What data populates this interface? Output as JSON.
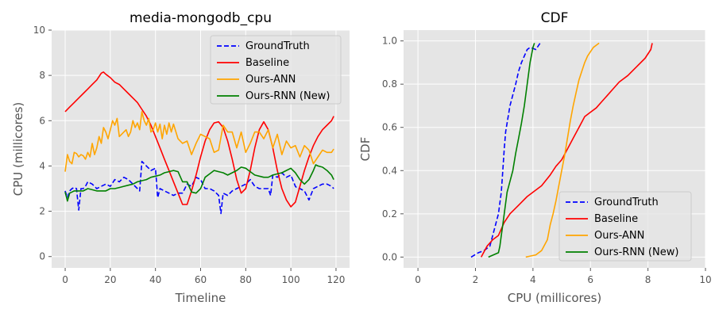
{
  "chart_data": [
    {
      "type": "line",
      "title": "media-mongodb_cpu",
      "xlabel": "Timeline",
      "ylabel": "CPU (millicores)",
      "xlim": [
        -6,
        126
      ],
      "ylim": [
        -0.5,
        10
      ],
      "xticks": [
        0,
        20,
        40,
        60,
        80,
        100,
        120
      ],
      "yticks": [
        0,
        2,
        4,
        6,
        8,
        10
      ],
      "grid": true,
      "legend_position": "top-right",
      "series": [
        {
          "name": "GroundTruth",
          "color": "#0000ff",
          "style": "dashed",
          "x": [
            0,
            1,
            2,
            3,
            4,
            5,
            6,
            7,
            8,
            9,
            10,
            12,
            14,
            16,
            18,
            20,
            22,
            24,
            26,
            28,
            30,
            32,
            33,
            34,
            36,
            38,
            40,
            41,
            42,
            44,
            46,
            48,
            50,
            52,
            54,
            56,
            58,
            60,
            62,
            64,
            66,
            68,
            69,
            70,
            72,
            74,
            76,
            78,
            80,
            82,
            84,
            86,
            88,
            90,
            91,
            92,
            94,
            96,
            98,
            100,
            102,
            103,
            104,
            106,
            108,
            110,
            112,
            114,
            116,
            118,
            119
          ],
          "y": [
            2.9,
            2.6,
            2.9,
            3.0,
            3.05,
            3.0,
            2.05,
            3.0,
            3.0,
            3.1,
            3.3,
            3.2,
            3.0,
            3.1,
            3.2,
            3.1,
            3.4,
            3.3,
            3.5,
            3.4,
            3.2,
            3.0,
            2.9,
            4.2,
            4.0,
            3.8,
            3.9,
            2.6,
            3.0,
            2.9,
            2.8,
            2.7,
            2.8,
            2.8,
            3.2,
            3.1,
            3.5,
            3.4,
            3.0,
            3.0,
            2.9,
            2.7,
            1.9,
            2.8,
            2.7,
            2.9,
            3.0,
            3.1,
            3.2,
            3.4,
            3.1,
            3.0,
            3.0,
            3.0,
            2.7,
            3.6,
            3.5,
            3.7,
            3.5,
            3.6,
            3.1,
            3.0,
            3.0,
            2.9,
            2.5,
            3.0,
            3.1,
            3.2,
            3.2,
            3.1,
            3.0
          ]
        },
        {
          "name": "Baseline",
          "color": "#ff0000",
          "style": "solid",
          "x": [
            0,
            2,
            4,
            6,
            8,
            10,
            12,
            14,
            16,
            17,
            18,
            20,
            22,
            24,
            26,
            28,
            30,
            32,
            34,
            36,
            38,
            40,
            42,
            44,
            46,
            48,
            50,
            52,
            54,
            56,
            58,
            60,
            62,
            64,
            66,
            68,
            70,
            72,
            74,
            76,
            78,
            80,
            82,
            84,
            86,
            88,
            90,
            92,
            94,
            96,
            98,
            100,
            102,
            104,
            106,
            108,
            110,
            112,
            114,
            116,
            118,
            119
          ],
          "y": [
            6.4,
            6.6,
            6.8,
            7.0,
            7.2,
            7.4,
            7.6,
            7.8,
            8.1,
            8.15,
            8.05,
            7.9,
            7.7,
            7.6,
            7.4,
            7.2,
            7.0,
            6.8,
            6.5,
            6.2,
            5.8,
            5.3,
            4.8,
            4.3,
            3.8,
            3.3,
            2.8,
            2.3,
            2.3,
            2.9,
            3.6,
            4.4,
            5.1,
            5.6,
            5.9,
            5.95,
            5.7,
            5.1,
            4.3,
            3.4,
            2.8,
            3.0,
            3.8,
            4.8,
            5.6,
            5.95,
            5.6,
            4.8,
            3.8,
            3.0,
            2.5,
            2.2,
            2.4,
            3.1,
            3.8,
            4.4,
            4.9,
            5.3,
            5.6,
            5.8,
            6.0,
            6.2
          ]
        },
        {
          "name": "Ours-ANN",
          "color": "#ffa500",
          "style": "solid",
          "x": [
            0,
            1,
            2,
            3,
            4,
            5,
            6,
            7,
            8,
            9,
            10,
            11,
            12,
            13,
            14,
            15,
            16,
            17,
            18,
            19,
            20,
            21,
            22,
            23,
            24,
            25,
            26,
            27,
            28,
            29,
            30,
            31,
            32,
            33,
            34,
            35,
            36,
            37,
            38,
            39,
            40,
            41,
            42,
            43,
            44,
            45,
            46,
            47,
            48,
            50,
            52,
            54,
            56,
            58,
            60,
            62,
            64,
            66,
            68,
            70,
            72,
            74,
            76,
            78,
            80,
            82,
            84,
            86,
            88,
            90,
            92,
            94,
            96,
            98,
            100,
            102,
            104,
            106,
            108,
            110,
            112,
            114,
            116,
            118,
            119
          ],
          "y": [
            3.75,
            4.5,
            4.2,
            4.1,
            4.6,
            4.55,
            4.4,
            4.5,
            4.45,
            4.3,
            4.6,
            4.4,
            5.0,
            4.5,
            4.8,
            5.3,
            5.0,
            5.7,
            5.5,
            5.2,
            5.6,
            6.0,
            5.8,
            6.1,
            5.3,
            5.4,
            5.5,
            5.6,
            5.3,
            5.5,
            6.0,
            5.7,
            5.9,
            5.6,
            6.4,
            6.0,
            5.8,
            6.1,
            5.5,
            5.6,
            5.9,
            5.5,
            5.85,
            5.2,
            5.8,
            5.4,
            5.9,
            5.5,
            5.85,
            5.2,
            5.0,
            5.1,
            4.5,
            5.0,
            5.4,
            5.3,
            5.2,
            4.6,
            4.7,
            5.8,
            5.5,
            5.5,
            4.8,
            5.5,
            4.6,
            5.0,
            5.5,
            5.5,
            5.2,
            5.6,
            4.8,
            5.4,
            4.5,
            5.1,
            4.8,
            4.9,
            4.4,
            4.9,
            4.7,
            4.1,
            4.4,
            4.7,
            4.6,
            4.6,
            4.75
          ]
        },
        {
          "name": "Ours-RNN (New)",
          "color": "#008000",
          "style": "solid",
          "x": [
            0,
            1,
            2,
            3,
            4,
            6,
            8,
            10,
            12,
            14,
            16,
            18,
            20,
            22,
            24,
            26,
            28,
            30,
            32,
            34,
            36,
            38,
            40,
            42,
            44,
            46,
            48,
            50,
            52,
            54,
            56,
            58,
            60,
            62,
            64,
            66,
            68,
            70,
            72,
            74,
            76,
            78,
            80,
            82,
            84,
            86,
            88,
            90,
            92,
            94,
            96,
            98,
            100,
            102,
            104,
            106,
            108,
            110,
            111,
            112,
            114,
            116,
            118,
            119
          ],
          "y": [
            2.85,
            2.45,
            2.8,
            2.85,
            2.9,
            2.9,
            2.9,
            3.0,
            2.95,
            2.9,
            2.9,
            2.9,
            3.0,
            3.0,
            3.05,
            3.1,
            3.15,
            3.2,
            3.3,
            3.35,
            3.4,
            3.5,
            3.55,
            3.6,
            3.7,
            3.75,
            3.8,
            3.75,
            3.3,
            3.3,
            2.85,
            2.8,
            3.0,
            3.5,
            3.65,
            3.8,
            3.75,
            3.7,
            3.6,
            3.7,
            3.8,
            3.95,
            3.9,
            3.75,
            3.6,
            3.55,
            3.5,
            3.5,
            3.6,
            3.65,
            3.7,
            3.8,
            3.9,
            3.7,
            3.4,
            3.2,
            3.4,
            3.8,
            4.05,
            4.0,
            3.95,
            3.8,
            3.6,
            3.4
          ]
        }
      ]
    },
    {
      "type": "line",
      "title": "CDF",
      "xlabel": "CPU (millicores)",
      "ylabel": "CDF",
      "xlim": [
        -0.5,
        10
      ],
      "ylim": [
        -0.05,
        1.05
      ],
      "xticks": [
        0,
        2,
        4,
        6,
        8,
        10
      ],
      "yticks": [
        0.0,
        0.2,
        0.4,
        0.6,
        0.8,
        1.0
      ],
      "grid": true,
      "legend_position": "lower-right",
      "series": [
        {
          "name": "GroundTruth",
          "color": "#0000ff",
          "style": "dashed",
          "x": [
            1.85,
            2.1,
            2.3,
            2.5,
            2.6,
            2.7,
            2.8,
            2.9,
            2.95,
            3.0,
            3.05,
            3.1,
            3.15,
            3.2,
            3.3,
            3.4,
            3.5,
            3.6,
            3.7,
            3.8,
            3.9,
            4.1,
            4.2,
            4.25
          ],
          "y": [
            0.0,
            0.02,
            0.03,
            0.05,
            0.1,
            0.15,
            0.2,
            0.3,
            0.4,
            0.5,
            0.58,
            0.62,
            0.66,
            0.7,
            0.75,
            0.8,
            0.86,
            0.9,
            0.93,
            0.96,
            0.97,
            0.96,
            0.98,
            0.99
          ]
        },
        {
          "name": "Baseline",
          "color": "#ff0000",
          "style": "solid",
          "x": [
            2.2,
            2.4,
            2.6,
            2.8,
            3.0,
            3.2,
            3.5,
            3.8,
            4.0,
            4.3,
            4.6,
            4.8,
            5.0,
            5.2,
            5.4,
            5.6,
            5.8,
            6.0,
            6.2,
            6.4,
            6.6,
            6.8,
            7.0,
            7.3,
            7.6,
            7.9,
            8.1,
            8.15
          ],
          "y": [
            0.0,
            0.05,
            0.08,
            0.1,
            0.16,
            0.2,
            0.24,
            0.28,
            0.3,
            0.33,
            0.38,
            0.42,
            0.45,
            0.5,
            0.55,
            0.6,
            0.65,
            0.67,
            0.69,
            0.72,
            0.75,
            0.78,
            0.81,
            0.84,
            0.88,
            0.92,
            0.96,
            0.99
          ]
        },
        {
          "name": "Ours-ANN",
          "color": "#ffa500",
          "style": "solid",
          "x": [
            3.75,
            4.1,
            4.3,
            4.5,
            4.6,
            4.7,
            4.8,
            4.9,
            5.0,
            5.1,
            5.2,
            5.3,
            5.4,
            5.5,
            5.6,
            5.7,
            5.8,
            5.9,
            6.0,
            6.1,
            6.2,
            6.3
          ],
          "y": [
            0.0,
            0.01,
            0.03,
            0.08,
            0.15,
            0.2,
            0.26,
            0.33,
            0.4,
            0.47,
            0.55,
            0.63,
            0.7,
            0.76,
            0.82,
            0.86,
            0.9,
            0.93,
            0.95,
            0.97,
            0.98,
            0.99
          ]
        },
        {
          "name": "Ours-RNN (New)",
          "color": "#008000",
          "style": "solid",
          "x": [
            2.45,
            2.8,
            2.85,
            2.9,
            2.95,
            3.0,
            3.05,
            3.1,
            3.2,
            3.3,
            3.4,
            3.5,
            3.6,
            3.7,
            3.8,
            3.9,
            4.0,
            4.05
          ],
          "y": [
            0.0,
            0.02,
            0.05,
            0.1,
            0.15,
            0.2,
            0.25,
            0.3,
            0.35,
            0.4,
            0.48,
            0.55,
            0.62,
            0.7,
            0.8,
            0.9,
            0.97,
            0.99
          ]
        }
      ]
    }
  ]
}
